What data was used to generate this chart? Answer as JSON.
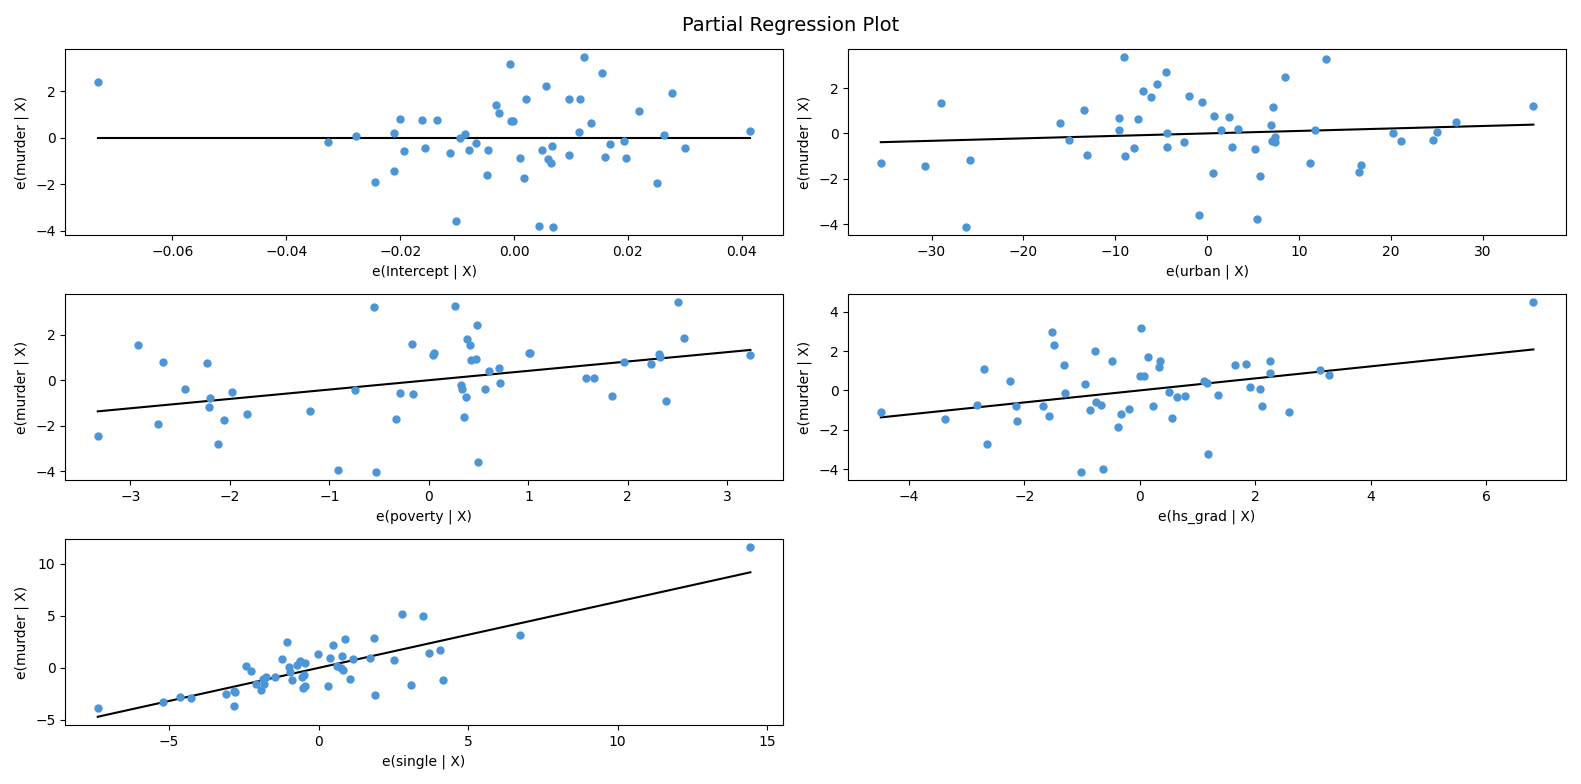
{
  "title": "Partial Regression Plot",
  "dot_color": "#4C96D7",
  "line_color": "black",
  "dot_size": 25,
  "subplots": [
    {
      "xlabel": "e(Intercept | X)",
      "ylabel": "e(murder | X)"
    },
    {
      "xlabel": "e(urban | X)",
      "ylabel": "e(murder | X)"
    },
    {
      "xlabel": "e(poverty | X)",
      "ylabel": "e(murder | X)"
    },
    {
      "xlabel": "e(hs_grad | X)",
      "ylabel": "e(murder | X)"
    },
    {
      "xlabel": "e(single | X)",
      "ylabel": "e(murder | X)"
    }
  ],
  "figsize": [
    15.81,
    7.84
  ],
  "dpi": 100
}
